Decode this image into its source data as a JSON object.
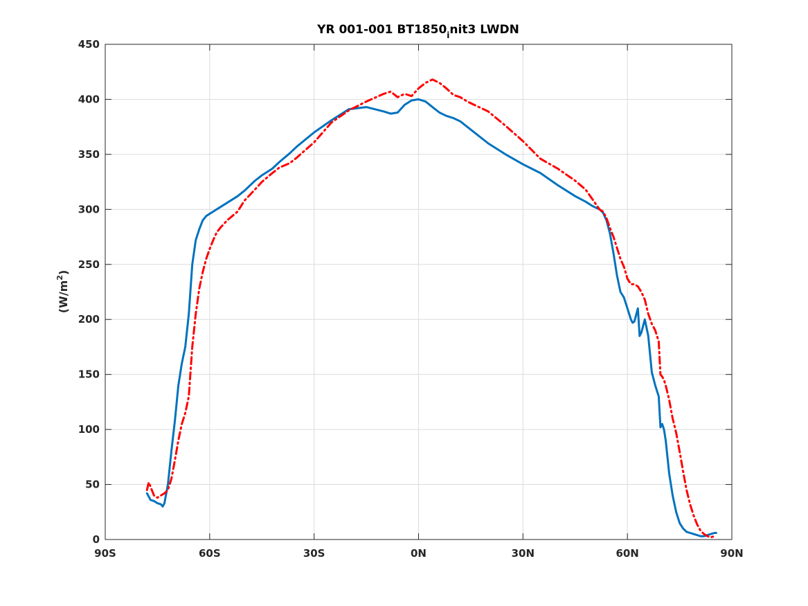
{
  "chart_data": {
    "type": "line",
    "title": "YR 001-001 BT1850",
    "title_subscript": "i",
    "title_suffix": "nit3 LWDN",
    "xlabel": "",
    "ylabel": "(W/m",
    "ylabel_superscript": "2",
    "ylabel_close": ")",
    "xlim": [
      -90,
      90
    ],
    "ylim": [
      0,
      450
    ],
    "xticks": [
      -90,
      -60,
      -30,
      0,
      30,
      60,
      90
    ],
    "xtick_labels": [
      "90S",
      "60S",
      "30S",
      "0N",
      "30N",
      "60N",
      "90N"
    ],
    "yticks": [
      0,
      50,
      100,
      150,
      200,
      250,
      300,
      350,
      400,
      450
    ],
    "ytick_labels": [
      "0",
      "50",
      "100",
      "150",
      "200",
      "250",
      "300",
      "350",
      "400",
      "450"
    ],
    "grid": true,
    "legend": "none",
    "series": [
      {
        "color": "#0072BD",
        "style": "solid",
        "x": [
          -78,
          -77,
          -76,
          -75,
          -74,
          -73.5,
          -73,
          -72,
          -71,
          -70,
          -69,
          -68,
          -67,
          -66,
          -65,
          -64,
          -63,
          -62,
          -61,
          -60,
          -59,
          -58,
          -57,
          -55,
          -52,
          -50,
          -47,
          -45,
          -42,
          -40,
          -37,
          -35,
          -30,
          -25,
          -20,
          -15,
          -10,
          -8,
          -6,
          -4,
          -2,
          0,
          2,
          4,
          6,
          8,
          10,
          12,
          14,
          16,
          20,
          25,
          30,
          35,
          40,
          45,
          48,
          50,
          52,
          53,
          54,
          55,
          56,
          57,
          58,
          59,
          60,
          61,
          61.5,
          62,
          63,
          63.5,
          64,
          65,
          66,
          67,
          68,
          69,
          69.5,
          70,
          70.5,
          71,
          71.5,
          72,
          73,
          74,
          75,
          76,
          77,
          78,
          79,
          80,
          81,
          82,
          83,
          84,
          85,
          85.5
        ],
        "y": [
          42,
          36,
          35,
          33,
          32,
          30,
          33,
          50,
          80,
          108,
          140,
          160,
          175,
          205,
          250,
          272,
          282,
          290,
          294,
          296,
          298,
          300,
          302,
          306,
          312,
          317,
          326,
          331,
          337,
          343,
          351,
          357,
          370,
          381,
          391,
          393,
          389,
          387,
          388,
          395,
          399,
          400,
          398,
          393,
          388,
          385,
          383,
          380,
          375,
          370,
          360,
          350,
          341,
          333,
          322,
          312,
          307,
          303,
          300,
          297,
          290,
          278,
          260,
          240,
          225,
          220,
          210,
          200,
          197,
          198,
          210,
          185,
          188,
          200,
          185,
          152,
          140,
          130,
          102,
          105,
          100,
          90,
          75,
          60,
          40,
          25,
          15,
          10,
          7,
          6,
          5,
          4,
          3,
          3,
          4,
          5,
          6,
          6
        ]
      },
      {
        "color": "#FF0000",
        "style": "dashdot",
        "x": [
          -78,
          -77.5,
          -77,
          -76,
          -75,
          -74,
          -73,
          -72,
          -71,
          -70,
          -69,
          -68,
          -67,
          -66,
          -65,
          -64,
          -63,
          -62,
          -61,
          -60,
          -59,
          -58,
          -57,
          -55,
          -52,
          -50,
          -47,
          -45,
          -42,
          -40,
          -37,
          -35,
          -30,
          -25,
          -20,
          -15,
          -10,
          -8,
          -6,
          -4,
          -2,
          0,
          2,
          4,
          6,
          8,
          10,
          12,
          14,
          16,
          20,
          25,
          30,
          35,
          40,
          45,
          48,
          50,
          52,
          53,
          54,
          55,
          56,
          57,
          58,
          59,
          60,
          61,
          62,
          63,
          64,
          65,
          66,
          67,
          68,
          69,
          69.5,
          70,
          70.5,
          71,
          72,
          73,
          74,
          75,
          76,
          77,
          78,
          79,
          80,
          81,
          82,
          83,
          84,
          85
        ],
        "y": [
          45,
          52,
          48,
          40,
          38,
          40,
          42,
          45,
          55,
          72,
          90,
          105,
          115,
          130,
          175,
          205,
          228,
          243,
          255,
          264,
          272,
          279,
          283,
          290,
          298,
          308,
          318,
          325,
          333,
          338,
          342,
          347,
          361,
          379,
          390,
          398,
          405,
          407,
          402,
          405,
          403,
          410,
          415,
          418,
          415,
          410,
          404,
          402,
          398,
          395,
          389,
          376,
          362,
          346,
          337,
          326,
          318,
          309,
          300,
          298,
          292,
          283,
          275,
          265,
          255,
          248,
          237,
          232,
          232,
          230,
          225,
          218,
          205,
          196,
          190,
          180,
          150,
          148,
          145,
          140,
          127,
          110,
          97,
          80,
          62,
          45,
          32,
          22,
          14,
          8,
          5,
          3,
          2,
          3
        ]
      }
    ]
  }
}
